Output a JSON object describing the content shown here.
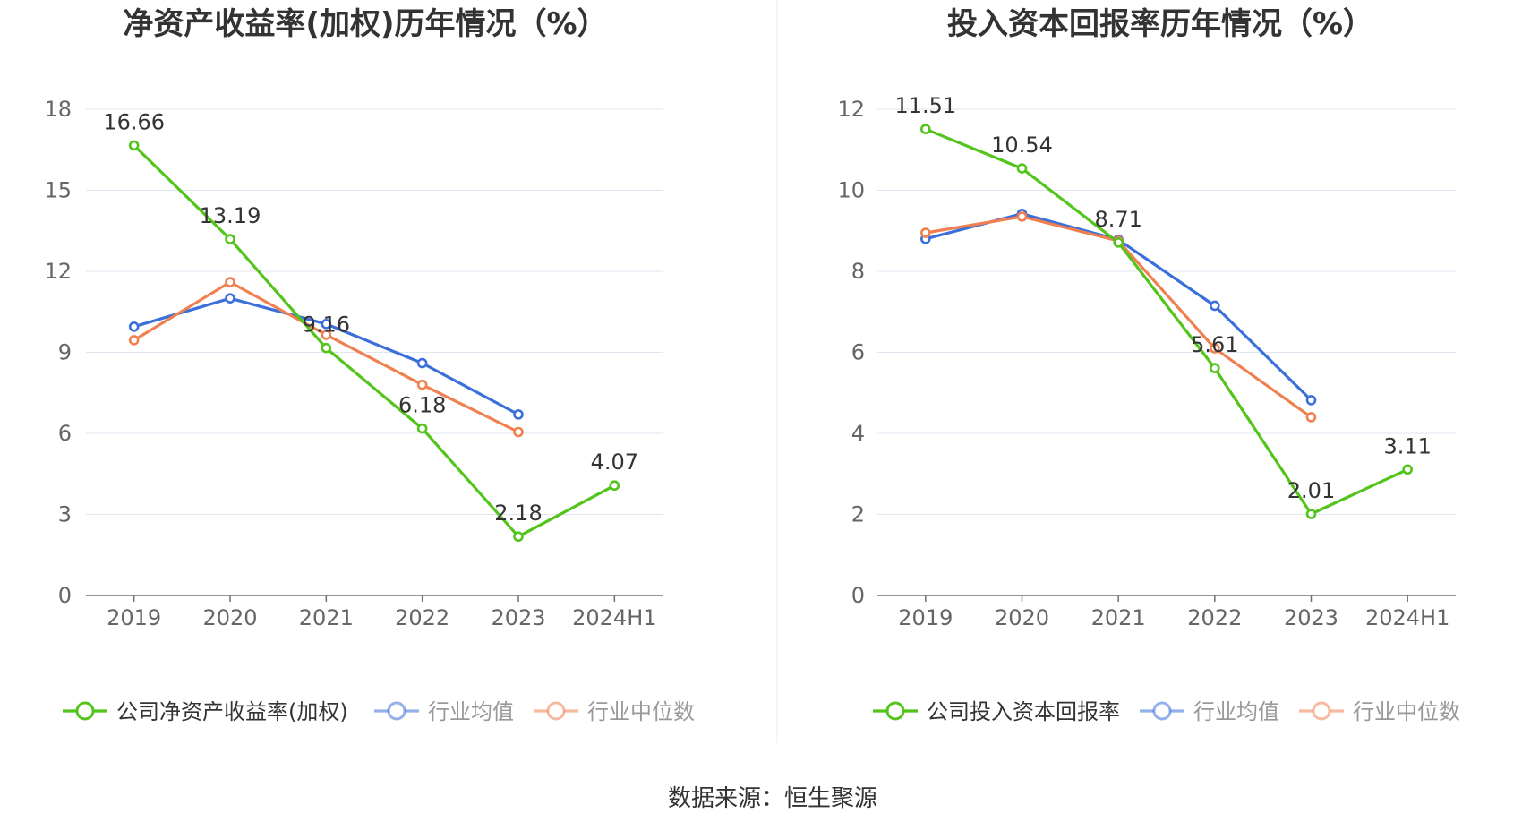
{
  "chart_data": [
    {
      "type": "line",
      "title": "净资产收益率(加权)历年情况（%）",
      "categories": [
        "2019",
        "2020",
        "2021",
        "2022",
        "2023",
        "2024H1"
      ],
      "ylim": [
        0,
        18
      ],
      "yticks": [
        "0",
        "3",
        "6",
        "9",
        "12",
        "15",
        "18"
      ],
      "grid": true,
      "legend_position": "bottom",
      "series": [
        {
          "name": "公司净资产收益率(加权)",
          "color": "#52c41a",
          "values": [
            16.66,
            13.19,
            9.16,
            6.18,
            2.18,
            4.07
          ],
          "labels": [
            "16.66",
            "13.19",
            "9.16",
            "6.18",
            "2.18",
            "4.07"
          ]
        },
        {
          "name": "行业均值",
          "color": "#3b6fd9",
          "values": [
            9.95,
            11.0,
            10.05,
            8.6,
            6.7,
            null
          ]
        },
        {
          "name": "行业中位数",
          "color": "#f08050",
          "values": [
            9.45,
            11.6,
            9.65,
            7.8,
            6.05,
            null
          ]
        }
      ]
    },
    {
      "type": "line",
      "title": "投入资本回报率历年情况（%）",
      "categories": [
        "2019",
        "2020",
        "2021",
        "2022",
        "2023",
        "2024H1"
      ],
      "ylim": [
        0,
        12
      ],
      "yticks": [
        "0",
        "2",
        "4",
        "6",
        "8",
        "10",
        "12"
      ],
      "grid": true,
      "legend_position": "bottom",
      "series": [
        {
          "name": "公司投入资本回报率",
          "color": "#52c41a",
          "values": [
            11.51,
            10.54,
            8.71,
            5.61,
            2.01,
            3.11
          ],
          "labels": [
            "11.51",
            "10.54",
            "8.71",
            "5.61",
            "2.01",
            "3.11"
          ]
        },
        {
          "name": "行业均值",
          "color": "#3b6fd9",
          "values": [
            8.8,
            9.42,
            8.78,
            7.15,
            4.82,
            null
          ]
        },
        {
          "name": "行业中位数",
          "color": "#f08050",
          "values": [
            8.95,
            9.35,
            8.75,
            6.1,
            4.4,
            null
          ]
        }
      ]
    }
  ],
  "footer": {
    "source": "数据来源：恒生聚源"
  }
}
